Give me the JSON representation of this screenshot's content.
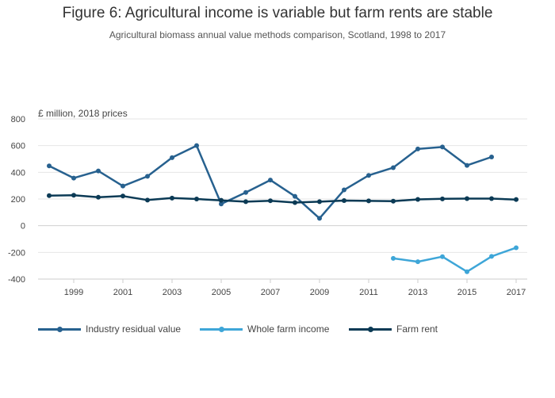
{
  "title": "Figure 6: Agricultural income is variable but farm rents are stable",
  "subtitle": "Agricultural biomass annual value methods comparison, Scotland, 1998 to 2017",
  "chart_data": {
    "type": "line",
    "ylabel": "£ million, 2018 prices",
    "xlabel": "",
    "ylim": [
      -400,
      800
    ],
    "xlim": [
      1998,
      2017
    ],
    "yticks": [
      -400,
      -200,
      0,
      200,
      400,
      600,
      800
    ],
    "xticks": [
      1999,
      2001,
      2003,
      2005,
      2007,
      2009,
      2011,
      2013,
      2015,
      2017
    ],
    "grid": true,
    "legend_position": "bottom",
    "series": [
      {
        "name": "Industry residual value",
        "color": "#27618f",
        "x": [
          1998,
          1999,
          2000,
          2001,
          2002,
          2003,
          2004,
          2005,
          2006,
          2007,
          2008,
          2009,
          2010,
          2011,
          2012,
          2013,
          2014,
          2015,
          2016
        ],
        "values": [
          448,
          357,
          410,
          297,
          370,
          510,
          600,
          163,
          249,
          342,
          220,
          55,
          268,
          377,
          435,
          575,
          590,
          452,
          515
        ]
      },
      {
        "name": "Whole farm income",
        "color": "#3ea6d8",
        "x": [
          2012,
          2013,
          2014,
          2015,
          2016,
          2017
        ],
        "values": [
          -245,
          -270,
          -232,
          -345,
          -230,
          -165
        ]
      },
      {
        "name": "Farm rent",
        "color": "#0b3a55",
        "x": [
          1998,
          1999,
          2000,
          2001,
          2002,
          2003,
          2004,
          2005,
          2006,
          2007,
          2008,
          2009,
          2010,
          2011,
          2012,
          2013,
          2014,
          2015,
          2016,
          2017
        ],
        "values": [
          225,
          228,
          213,
          222,
          192,
          207,
          200,
          190,
          180,
          187,
          173,
          180,
          188,
          186,
          184,
          197,
          201,
          203,
          203,
          196
        ]
      }
    ]
  }
}
